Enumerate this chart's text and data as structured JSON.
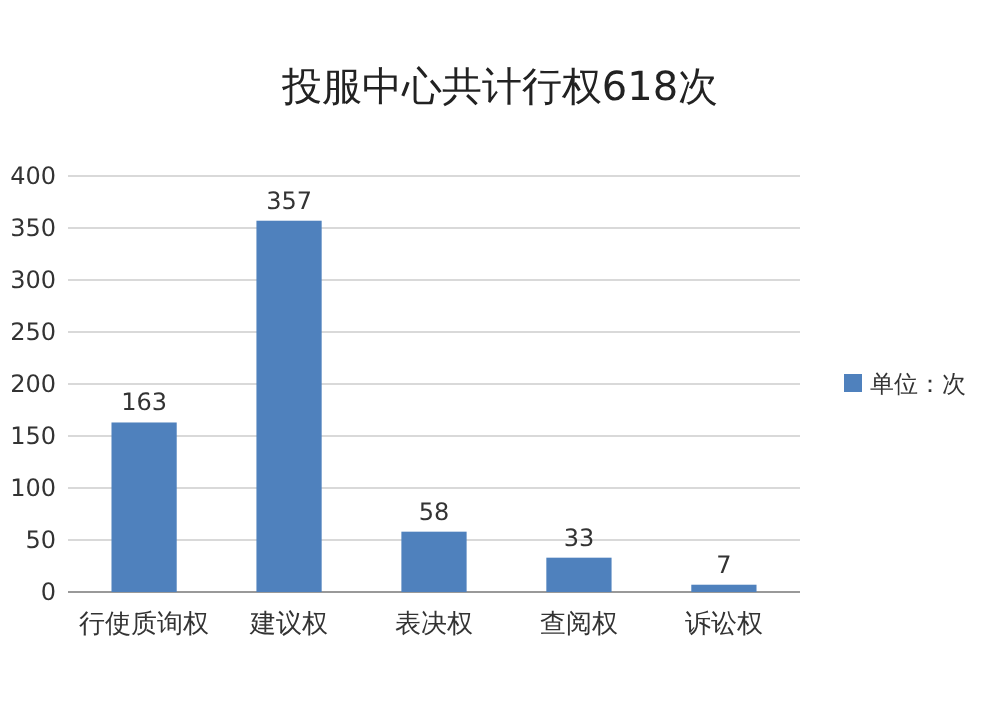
{
  "chart_data": {
    "type": "bar",
    "title": "投服中心共计行权618次",
    "categories": [
      "行使质询权",
      "建议权",
      "表决权",
      "查阅权",
      "诉讼权"
    ],
    "series": [
      {
        "name": "单位：次",
        "color": "#4f81bd",
        "values": [
          163,
          357,
          58,
          33,
          7
        ]
      }
    ],
    "ylim": [
      0,
      400
    ],
    "yticks": [
      0,
      50,
      100,
      150,
      200,
      250,
      300,
      350,
      400
    ],
    "grid": "y",
    "legend": "right",
    "data_labels": true
  }
}
